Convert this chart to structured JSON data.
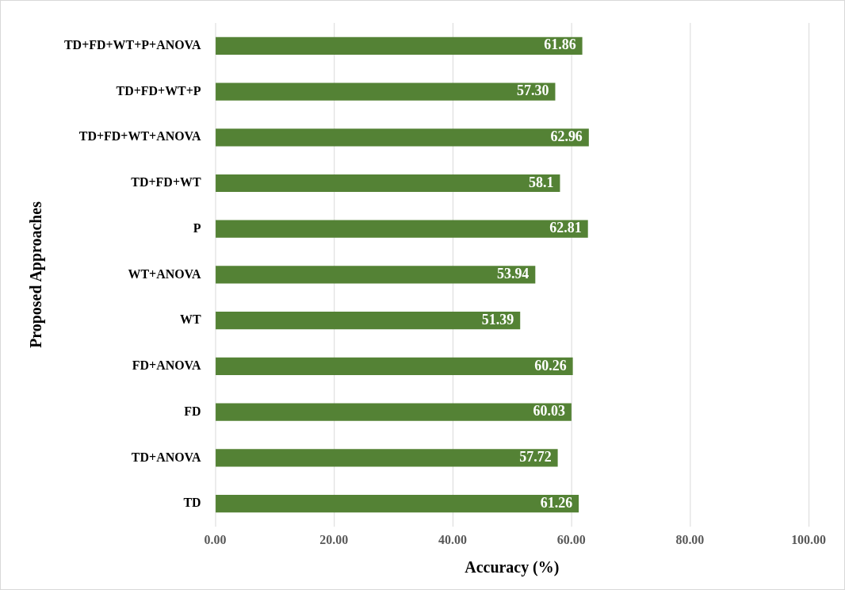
{
  "chart_data": {
    "type": "bar",
    "orientation": "horizontal",
    "xlabel": "Accuracy (%)",
    "ylabel": "Proposed Approaches",
    "categories": [
      "TD+FD+WT+P+ANOVA",
      "TD+FD+WT+P",
      "TD+FD+WT+ANOVA",
      "TD+FD+WT",
      "P",
      "WT+ANOVA",
      "WT",
      "FD+ANOVA",
      "FD",
      "TD+ANOVA",
      "TD"
    ],
    "values": [
      61.86,
      57.3,
      62.96,
      58.1,
      62.81,
      53.94,
      51.39,
      60.26,
      60.03,
      57.72,
      61.26
    ],
    "value_labels": [
      "61.86",
      "57.30",
      "62.96",
      "58.1",
      "62.81",
      "53.94",
      "51.39",
      "60.26",
      "60.03",
      "57.72",
      "61.26"
    ],
    "color": "#548235",
    "xlim": [
      0,
      100
    ],
    "xticks": [
      {
        "value": 0,
        "label": "0.00"
      },
      {
        "value": 20,
        "label": "20.00"
      },
      {
        "value": 40,
        "label": "40.00"
      },
      {
        "value": 60,
        "label": "60.00"
      },
      {
        "value": 80,
        "label": "80.00"
      },
      {
        "value": 100,
        "label": "100.00"
      }
    ],
    "grid": "x"
  }
}
